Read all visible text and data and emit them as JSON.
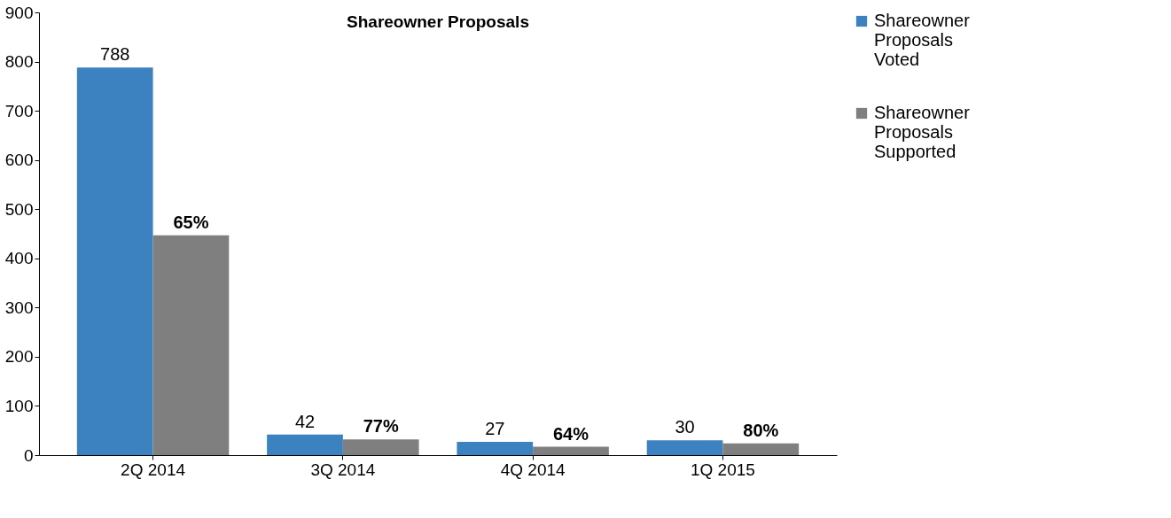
{
  "chart_data": {
    "type": "bar",
    "title": "Shareowner Proposals",
    "categories": [
      "2Q 2014",
      "3Q 2014",
      "4Q 2014",
      "1Q 2015"
    ],
    "series": [
      {
        "name": "Shareowner Proposals Voted",
        "color": "#3c82c0",
        "values": [
          788,
          42,
          27,
          30
        ],
        "value_labels": [
          "788",
          "42",
          "27",
          "30"
        ]
      },
      {
        "name": "Shareowner Proposals Supported",
        "color": "#7f7f7f",
        "values": [
          447,
          32,
          17,
          24
        ]
      }
    ],
    "annotations": [
      {
        "text": "65%",
        "x": "2Q 2014",
        "y": 447
      },
      {
        "text": "77%",
        "x": "3Q 2014",
        "y": 32
      },
      {
        "text": "64%",
        "x": "4Q 2014",
        "y": 17
      },
      {
        "text": "80%",
        "x": "1Q 2015",
        "y": 24
      }
    ],
    "ylim": [
      0,
      900
    ],
    "yticks": [
      0,
      100,
      200,
      300,
      400,
      500,
      600,
      700,
      800,
      900
    ],
    "grid": false,
    "legend": "right"
  }
}
